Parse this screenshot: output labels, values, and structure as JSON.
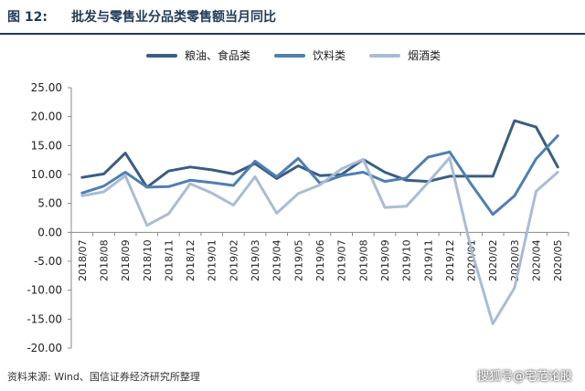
{
  "header": {
    "fig_label": "图 12:",
    "title": "批发与零售业分品类零售额当月同比"
  },
  "source": "资料来源: Wind、国信证券经济研究所整理",
  "watermark": "搜狐号@宅范论股",
  "chart_data": {
    "type": "line",
    "categories": [
      "2018/07",
      "2018/08",
      "2018/09",
      "2018/10",
      "2018/11",
      "2018/12",
      "2019/01",
      "2019/02",
      "2019/03",
      "2019/04",
      "2019/05",
      "2019/06",
      "2019/07",
      "2019/08",
      "2019/09",
      "2019/10",
      "2019/11",
      "2019/12",
      "2020/01",
      "2020/02",
      "2020/03",
      "2020/04",
      "2020/05"
    ],
    "ylim": [
      -20,
      25
    ],
    "yticks": [
      "25.00",
      "20.00",
      "15.00",
      "10.00",
      "5.00",
      "0.00",
      "-5.00",
      "-10.00",
      "-15.00",
      "-20.00"
    ],
    "grid": false,
    "legend_position": "top",
    "series": [
      {
        "name": "粮油、食品类",
        "color": "#3a5d84",
        "values": [
          9.5,
          10.1,
          13.7,
          7.8,
          10.6,
          11.3,
          10.8,
          10.1,
          11.9,
          9.3,
          11.5,
          9.8,
          10.0,
          12.6,
          10.4,
          9.0,
          8.8,
          9.7,
          9.7,
          9.7,
          19.3,
          18.2,
          11.3
        ]
      },
      {
        "name": "饮料类",
        "color": "#4e7fb3",
        "values": [
          6.8,
          8.0,
          10.4,
          7.8,
          7.9,
          9.0,
          8.6,
          8.1,
          12.3,
          9.6,
          12.8,
          8.5,
          9.8,
          10.4,
          8.8,
          9.4,
          13.0,
          13.9,
          8.3,
          3.1,
          6.3,
          12.7,
          16.7
        ]
      },
      {
        "name": "烟酒类",
        "color": "#a9bcd6",
        "values": [
          6.3,
          7.0,
          9.8,
          1.2,
          3.2,
          8.4,
          6.8,
          4.7,
          9.6,
          3.3,
          6.7,
          8.2,
          11.0,
          12.6,
          4.3,
          4.5,
          8.6,
          12.9,
          -3.0,
          -15.8,
          -9.6,
          7.1,
          10.4
        ]
      }
    ]
  }
}
